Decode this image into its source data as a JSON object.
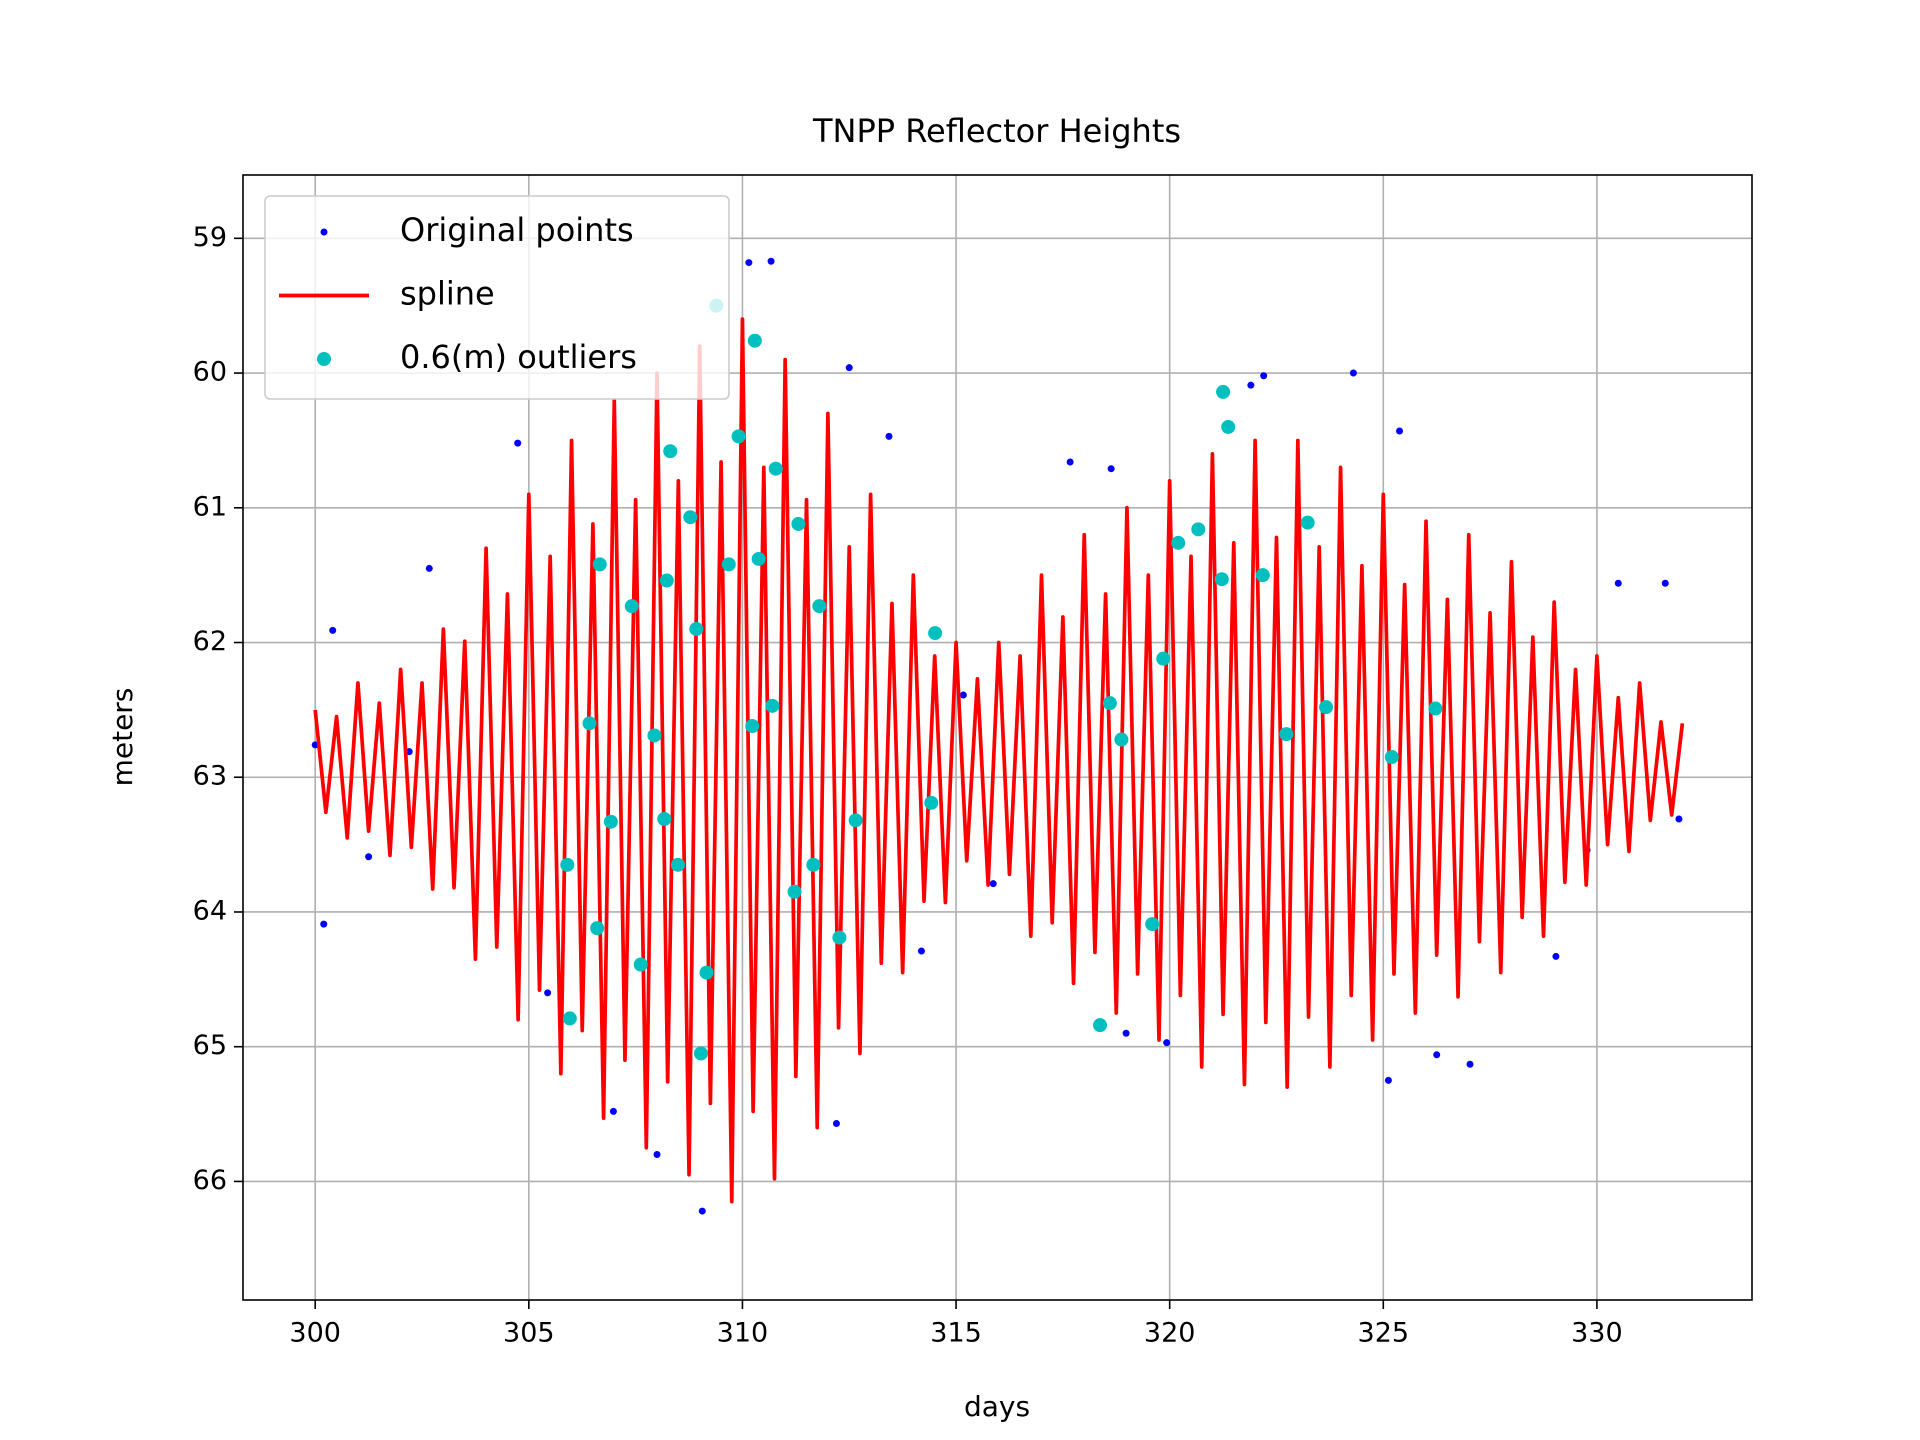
{
  "chart_data": {
    "type": "line",
    "title": "TNPP Reflector Heights",
    "x_label": "days",
    "y_label": "meters",
    "xlim": [
      298.31,
      333.63
    ],
    "ylim": [
      58.53,
      66.88
    ],
    "y_inverted": true,
    "xticks": [
      300,
      305,
      310,
      315,
      320,
      325,
      330
    ],
    "yticks": [
      59,
      60,
      61,
      62,
      63,
      64,
      65,
      66
    ],
    "grid": true,
    "legend": "upper left",
    "series": [
      {
        "name": "Original points",
        "type": "scatter",
        "color": "#0000ff",
        "x": [
          310.67,
          310.15,
          309.06,
          300.2,
          300.0,
          324.3,
          327.03,
          322.2,
          331.6,
          331.92,
          312.5,
          305.44,
          306.98,
          302.67,
          302.2,
          304.74,
          313.43,
          314.19,
          317.67,
          318.63,
          318.98,
          325.38,
          325.12,
          329.04,
          330.5,
          329.77,
          300.41,
          301.25,
          308.0,
          312.2,
          319.93,
          321.9,
          326.25,
          315.17,
          315.87
        ],
        "values": [
          59.17,
          59.18,
          66.22,
          64.09,
          62.76,
          60.0,
          65.13,
          60.02,
          61.56,
          63.31,
          59.96,
          64.6,
          65.48,
          61.45,
          62.81,
          60.52,
          60.47,
          64.29,
          60.66,
          60.71,
          64.9,
          60.43,
          65.25,
          64.33,
          61.56,
          63.54,
          61.91,
          63.59,
          65.8,
          65.57,
          64.97,
          60.09,
          65.06,
          62.39,
          63.79
        ]
      },
      {
        "name": "spline",
        "type": "line",
        "color": "#ff0000",
        "x": [
          300,
          300.25,
          300.5,
          300.75,
          301,
          301.25,
          301.5,
          301.75,
          302,
          302.25,
          302.5,
          302.75,
          303,
          303.25,
          303.5,
          303.75,
          304,
          304.25,
          304.5,
          304.75,
          305,
          305.25,
          305.5,
          305.75,
          306,
          306.25,
          306.5,
          306.75,
          307,
          307.25,
          307.5,
          307.75,
          308,
          308.25,
          308.5,
          308.75,
          309,
          309.25,
          309.5,
          309.75,
          310,
          310.25,
          310.5,
          310.75,
          311,
          311.25,
          311.5,
          311.75,
          312,
          312.25,
          312.5,
          312.75,
          313,
          313.25,
          313.5,
          313.75,
          314,
          314.25,
          314.5,
          314.75,
          315,
          315.25,
          315.5,
          315.75,
          316,
          316.25,
          316.5,
          316.75,
          317,
          317.25,
          317.5,
          317.75,
          318,
          318.25,
          318.5,
          318.75,
          319,
          319.25,
          319.5,
          319.75,
          320,
          320.25,
          320.5,
          320.75,
          321,
          321.25,
          321.5,
          321.75,
          322,
          322.25,
          322.5,
          322.75,
          323,
          323.25,
          323.5,
          323.75,
          324,
          324.25,
          324.5,
          324.75,
          325,
          325.25,
          325.5,
          325.75,
          326,
          326.25,
          326.5,
          326.75,
          327,
          327.25,
          327.5,
          327.75,
          328,
          328.25,
          328.5,
          328.75,
          329,
          329.25,
          329.5,
          329.75,
          330,
          330.25,
          330.5,
          330.75,
          331,
          331.25,
          331.5,
          331.75,
          332
        ],
        "values": [
          62.5,
          63.26,
          62.55,
          63.45,
          62.3,
          63.4,
          62.45,
          63.58,
          62.2,
          63.52,
          62.3,
          63.83,
          61.9,
          63.82,
          61.99,
          64.35,
          61.3,
          64.26,
          61.64,
          64.8,
          60.9,
          64.58,
          61.36,
          65.2,
          60.5,
          64.88,
          61.12,
          65.53,
          60.2,
          65.1,
          60.94,
          65.75,
          60.0,
          65.26,
          60.8,
          65.95,
          59.8,
          65.42,
          60.66,
          66.15,
          59.6,
          65.48,
          60.7,
          65.98,
          59.9,
          65.22,
          60.94,
          65.6,
          60.3,
          64.86,
          61.29,
          65.05,
          60.9,
          64.38,
          61.71,
          64.45,
          61.5,
          63.92,
          62.1,
          63.93,
          62.0,
          63.62,
          62.27,
          63.8,
          62.0,
          63.72,
          62.1,
          64.18,
          61.5,
          64.08,
          61.81,
          64.53,
          61.2,
          64.3,
          61.64,
          64.75,
          61.0,
          64.46,
          61.5,
          64.95,
          60.8,
          64.62,
          61.36,
          65.15,
          60.6,
          64.76,
          61.26,
          65.28,
          60.5,
          64.82,
          61.22,
          65.3,
          60.5,
          64.78,
          61.29,
          65.15,
          60.7,
          64.62,
          61.43,
          64.95,
          60.9,
          64.46,
          61.57,
          64.75,
          61.1,
          64.32,
          61.68,
          64.63,
          61.2,
          64.22,
          61.78,
          64.45,
          61.4,
          64.04,
          61.96,
          64.18,
          61.7,
          63.78,
          62.2,
          63.8,
          62.1,
          63.5,
          62.41,
          63.55,
          62.3,
          63.32,
          62.59,
          63.28,
          62.6
        ]
      },
      {
        "name": "0.6(m) outliers",
        "type": "scatter",
        "color": "#00bfbf",
        "x": [
          305.96,
          305.9,
          306.42,
          306.66,
          306.6,
          306.92,
          307.41,
          307.62,
          307.94,
          308.17,
          308.23,
          308.31,
          308.49,
          308.78,
          308.92,
          309.03,
          309.16,
          309.39,
          309.68,
          309.91,
          310.29,
          310.38,
          310.23,
          310.7,
          310.78,
          311.22,
          311.31,
          311.66,
          311.8,
          312.27,
          312.65,
          314.42,
          314.51,
          318.37,
          318.6,
          318.87,
          319.59,
          319.85,
          320.2,
          320.67,
          321.22,
          321.25,
          321.37,
          322.18,
          322.73,
          323.23,
          323.66,
          325.2,
          326.22
        ],
        "values": [
          64.79,
          63.65,
          62.6,
          61.42,
          64.12,
          63.33,
          61.73,
          64.39,
          62.69,
          63.31,
          61.54,
          60.58,
          63.65,
          61.07,
          61.9,
          65.05,
          64.45,
          59.5,
          61.42,
          60.47,
          59.76,
          61.38,
          62.62,
          62.47,
          60.71,
          63.85,
          61.12,
          63.65,
          61.73,
          64.19,
          63.32,
          63.19,
          61.93,
          64.84,
          62.45,
          62.72,
          64.09,
          62.12,
          61.26,
          61.16,
          61.53,
          60.14,
          60.4,
          61.5,
          62.68,
          61.11,
          62.48,
          62.85,
          62.49
        ]
      }
    ]
  }
}
